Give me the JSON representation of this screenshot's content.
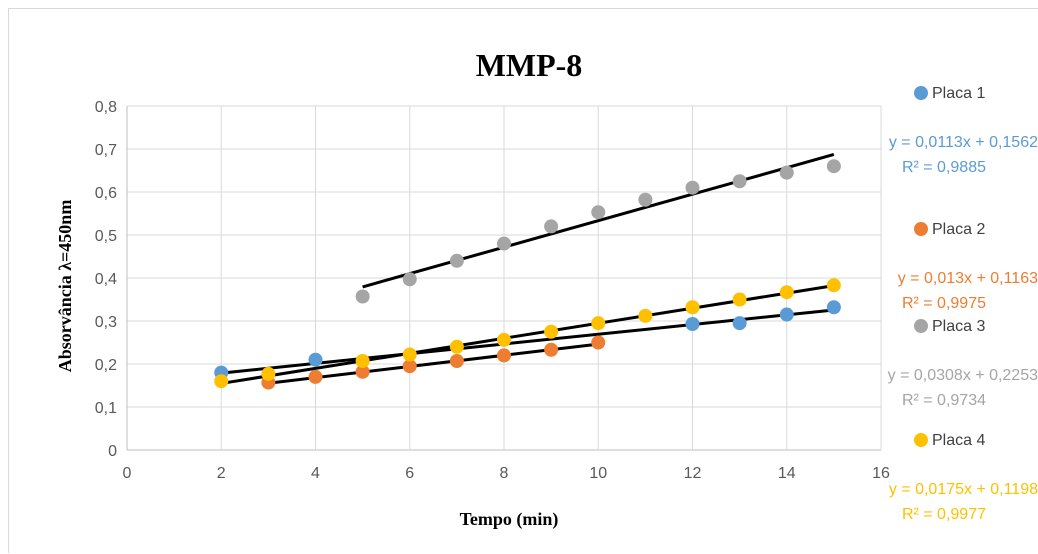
{
  "chart_data": {
    "type": "scatter",
    "title": "MMP-8",
    "xlabel": "Tempo (min)",
    "ylabel": "Absorvância λ=450nm",
    "xlim": [
      0,
      16
    ],
    "ylim": [
      0,
      0.8
    ],
    "xticks": [
      "0",
      "2",
      "4",
      "6",
      "8",
      "10",
      "12",
      "14",
      "16"
    ],
    "yticks": [
      "0",
      "0,1",
      "0,2",
      "0,3",
      "0,4",
      "0,5",
      "0,6",
      "0,7",
      "0,8"
    ],
    "grid": true,
    "legend_position": "right",
    "series": [
      {
        "name": "Placa 1",
        "color": "#5B9BD5",
        "x": [
          2,
          4,
          12,
          13,
          14,
          15
        ],
        "y": [
          0.18,
          0.21,
          0.293,
          0.295,
          0.315,
          0.332
        ],
        "trendline": {
          "slope": 0.0113,
          "intercept": 0.1562,
          "x_range": [
            2,
            15
          ]
        },
        "equation": "y = 0,0113x + 0,1562",
        "r2": "R² = 0,9885"
      },
      {
        "name": "Placa 2",
        "color": "#ED7D31",
        "x": [
          3,
          4,
          5,
          6,
          7,
          8,
          9,
          10
        ],
        "y": [
          0.157,
          0.17,
          0.182,
          0.195,
          0.207,
          0.22,
          0.233,
          0.25
        ],
        "trendline": {
          "slope": 0.013,
          "intercept": 0.1163,
          "x_range": [
            3,
            10
          ]
        },
        "equation": "y = 0,013x + 0,1163",
        "r2": "R² = 0,9975"
      },
      {
        "name": "Placa 3",
        "color": "#A5A5A5",
        "x": [
          5,
          6,
          7,
          8,
          9,
          10,
          11,
          12,
          13,
          14,
          15
        ],
        "y": [
          0.357,
          0.397,
          0.44,
          0.48,
          0.52,
          0.553,
          0.582,
          0.61,
          0.625,
          0.645,
          0.66
        ],
        "trendline": {
          "slope": 0.0308,
          "intercept": 0.2253,
          "x_range": [
            5,
            15
          ]
        },
        "equation": "y = 0,0308x + 0,2253",
        "r2": "R² = 0,9734"
      },
      {
        "name": "Placa 4",
        "color": "#FFC000",
        "x": [
          2,
          3,
          5,
          6,
          7,
          8,
          9,
          10,
          11,
          12,
          13,
          14,
          15
        ],
        "y": [
          0.16,
          0.177,
          0.207,
          0.222,
          0.24,
          0.256,
          0.275,
          0.295,
          0.312,
          0.332,
          0.35,
          0.367,
          0.383
        ],
        "trendline": {
          "slope": 0.0175,
          "intercept": 0.1198,
          "x_range": [
            2,
            15
          ]
        },
        "equation": "y = 0,0175x + 0,1198",
        "r2": "R² = 0,9977"
      }
    ]
  }
}
